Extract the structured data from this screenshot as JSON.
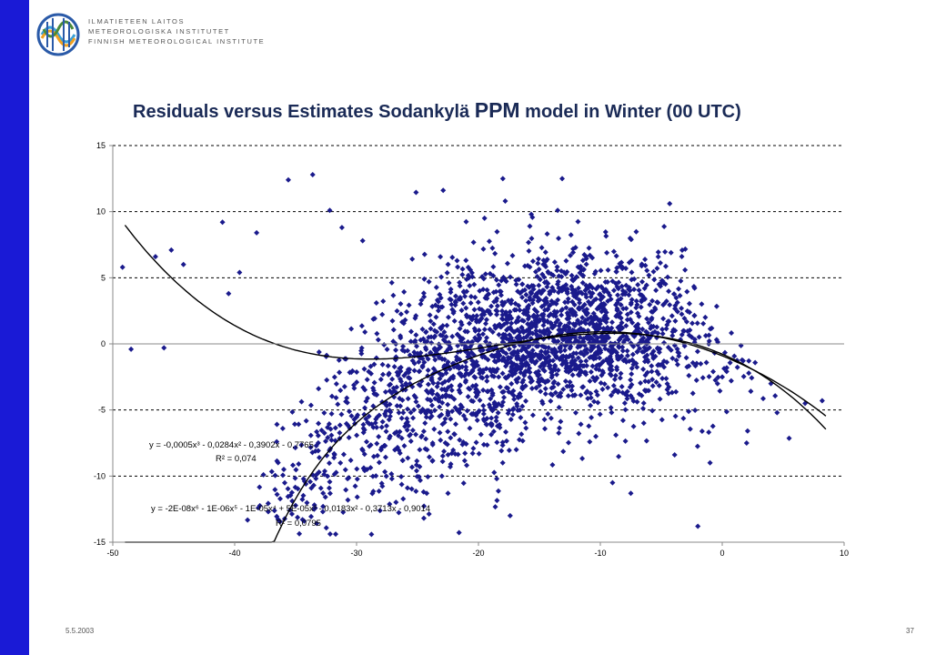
{
  "branding": {
    "org_lines": [
      "ILMATIETEEN LAITOS",
      "METEOROLOGISKA INSTITUTET",
      "FINNISH METEOROLOGICAL INSTITUTE"
    ],
    "sidebar_color": "#1a1ad6",
    "logo_colors": [
      "#2a5aa8",
      "#3aa0d8",
      "#f0a020",
      "#4a8a3a"
    ]
  },
  "slide": {
    "title_pre": "Residuals versus Estimates Sodankylä",
    "title_model": "PPM",
    "title_post": "model in Winter (00 UTC)",
    "date": "5.5.2003",
    "page_number": "37"
  },
  "chart_data": {
    "type": "scatter",
    "title": "Residuals versus Estimates Sodankylä PPM model in Winter (00 UTC)",
    "xlabel": "",
    "ylabel": "",
    "xlim": [
      -50,
      10
    ],
    "ylim": [
      -15,
      15
    ],
    "x_ticks": [
      "-50",
      "-40",
      "-30",
      "-20",
      "-10",
      "0",
      "10"
    ],
    "y_ticks": [
      "15",
      "10",
      "5",
      "0",
      "-5",
      "-10",
      "-15"
    ],
    "grid": "horizontal dashed",
    "marker_color": "#1a1a8c",
    "trendlines": [
      {
        "equation_main": "y = -0,0005x³ - 0,0284x² - 0,3902x - 0,7765",
        "r2": "R² = 0,074",
        "coefficients": [
          -0.7765,
          -0.3902,
          -0.0284,
          -0.0005
        ],
        "x_range": [
          -49,
          8.5
        ]
      },
      {
        "equation_main": "y = -2E-08x⁶ - 1E-06x⁵ - 1E-05x⁴ + 5E-05x³ - 0,0183x² - 0,3713x - 0,9014",
        "r2": "R² = 0,0795",
        "coefficients": [
          -0.9014,
          -0.3713,
          -0.0183,
          5e-05,
          -1e-05,
          -1e-06,
          -2e-08
        ],
        "x_range": [
          -49,
          8.5
        ]
      }
    ],
    "points_sample": [
      [
        -49.2,
        5.8
      ],
      [
        -48.5,
        -0.4
      ],
      [
        -46.5,
        6.6
      ],
      [
        -45.8,
        -0.3
      ],
      [
        -45.2,
        7.1
      ],
      [
        -44.2,
        6.0
      ],
      [
        -41.0,
        9.2
      ],
      [
        -40.5,
        3.8
      ],
      [
        -39.6,
        5.4
      ],
      [
        -38.2,
        8.4
      ],
      [
        -35.6,
        12.4
      ],
      [
        -33.6,
        12.8
      ],
      [
        -32.2,
        10.1
      ],
      [
        -31.2,
        8.8
      ],
      [
        -29.5,
        7.8
      ],
      [
        -24.5,
        -11.2
      ],
      [
        -23.0,
        -10.0
      ],
      [
        -22.5,
        -11.3
      ],
      [
        -19.5,
        9.5
      ],
      [
        -18.5,
        -10.2
      ],
      [
        -18.0,
        12.5
      ],
      [
        -17.8,
        10.8
      ],
      [
        -17.4,
        -13.0
      ],
      [
        -13.5,
        10.1
      ],
      [
        -9.0,
        -10.5
      ],
      [
        -7.5,
        -11.3
      ],
      [
        -4.2,
        6.9
      ],
      [
        -2.0,
        -13.8
      ],
      [
        -1.0,
        -9.0
      ],
      [
        2.0,
        -7.5
      ],
      [
        4.5,
        -5.2
      ],
      [
        6.8,
        -4.5
      ],
      [
        8.2,
        -4.3
      ]
    ]
  }
}
